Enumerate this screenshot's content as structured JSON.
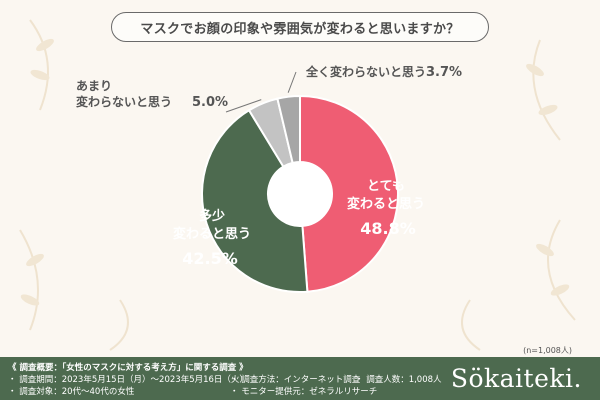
{
  "question": "マスクでお顔の印象や雰囲気が変わると思いますか？",
  "chart_data": {
    "type": "pie",
    "categories": [
      "とても変わると思う",
      "多少変わると思う",
      "あまり変わらないと思う",
      "全く変わらないと思う"
    ],
    "values": [
      48.8,
      42.5,
      5.0,
      3.7
    ],
    "unit": "%",
    "colors": [
      "#ef5d73",
      "#4d6a4f",
      "#c3c3c3",
      "#a6a6a6"
    ],
    "labels": [
      {
        "lines": [
          "とても",
          "変わると思う"
        ],
        "value": "48.8%"
      },
      {
        "lines": [
          "多少",
          "変わると思う"
        ],
        "value": "42.5%"
      },
      {
        "lines": [
          "あまり",
          "変わらないと思う"
        ],
        "value": "5.0%"
      },
      {
        "lines": [
          "全く変わらないと思う"
        ],
        "value": "3.7%"
      }
    ]
  },
  "sample_size": "(n=1,008人)",
  "survey": {
    "title": "《 調査概要：「女性のマスクに対する考え方」に関する調査 》",
    "period": "・ 調査期間：2023年5月15日（月）〜2023年5月16日（火）",
    "target": "・ 調査対象：20代〜40代の女性",
    "method": "・ 調査方法：インターネット調査",
    "provider": "・ モニター提供元：ゼネラルリサーチ",
    "count": "・ 調査人数：1,008人"
  },
  "brand": "Sökaiteki."
}
